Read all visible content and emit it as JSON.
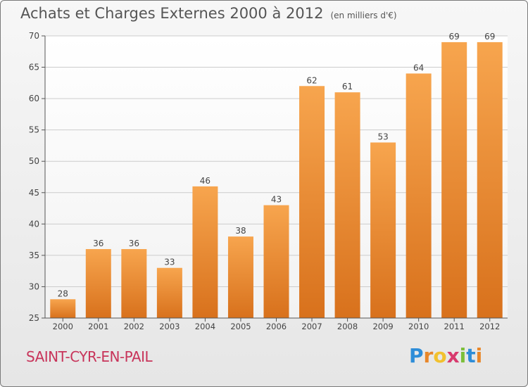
{
  "header": {
    "title": "Achats et Charges Externes 2000 à 2012",
    "unit": "(en milliers d'€)"
  },
  "footer": {
    "commune": "SAINT-CYR-EN-PAIL",
    "logo": "Proxiti"
  },
  "colors": {
    "bar_light": "#f7a54e",
    "bar_dark": "#d8711c",
    "grid": "#cccccc",
    "commune_text": "#c8345a"
  },
  "chart_data": {
    "type": "bar",
    "title": "Achats et Charges Externes 2000 à 2012",
    "subtitle": "(en milliers d'€)",
    "categories": [
      "2000",
      "2001",
      "2002",
      "2003",
      "2004",
      "2005",
      "2006",
      "2007",
      "2008",
      "2009",
      "2010",
      "2011",
      "2012"
    ],
    "values": [
      28,
      36,
      36,
      33,
      46,
      38,
      43,
      62,
      61,
      53,
      64,
      69,
      69
    ],
    "ylim": [
      25,
      70
    ],
    "yticks": [
      25,
      30,
      35,
      40,
      45,
      50,
      55,
      60,
      65,
      70
    ],
    "grid": true,
    "data_labels": true
  }
}
